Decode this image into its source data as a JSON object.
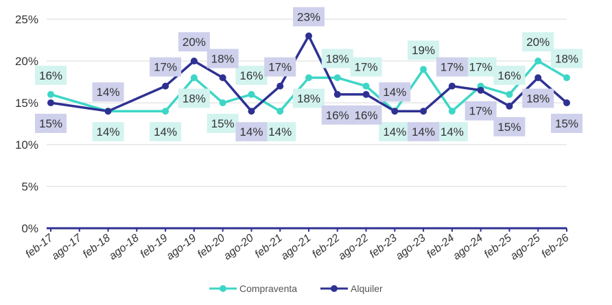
{
  "chart_data": {
    "type": "line",
    "title": "",
    "xlabel": "",
    "ylabel": "",
    "x": [
      "feb-17",
      "ago-17",
      "feb-18",
      "ago-18",
      "feb-19",
      "ago-19",
      "feb-20",
      "ago-20",
      "feb-21",
      "ago-21",
      "feb-22",
      "ago-22",
      "feb-23",
      "ago-23",
      "feb-24",
      "ago-24",
      "feb-25",
      "ago-25",
      "feb-26"
    ],
    "ylim": [
      0,
      25
    ],
    "yticks": [
      "0%",
      "5%",
      "10%",
      "15%",
      "20%",
      "25%"
    ],
    "grid": true,
    "legend_position": "bottom",
    "series": [
      {
        "name": "Compraventa",
        "color": "#3dd6c6",
        "label_bg": "#d3f3ef",
        "values": [
          16,
          null,
          14,
          null,
          14,
          18,
          15,
          16,
          14,
          18,
          18,
          17,
          14,
          19,
          14,
          17,
          16,
          20,
          18
        ],
        "labels": [
          "16%",
          "",
          "14%",
          "",
          "14%",
          "18%",
          "15%",
          "16%",
          "14%",
          "18%",
          "18%",
          "17%",
          "14%",
          "19%",
          "14%",
          "17%",
          "16%",
          "20%",
          "18%"
        ],
        "label_pos": [
          "above",
          "",
          "below",
          "",
          "below",
          "below",
          "below",
          "above",
          "below",
          "below",
          "above",
          "above",
          "below",
          "above",
          "below",
          "above",
          "above",
          "above",
          "above"
        ]
      },
      {
        "name": "Alquiler",
        "color": "#2e3192",
        "label_bg": "#cfd0ec",
        "values": [
          15,
          null,
          14,
          null,
          17,
          20,
          18,
          14,
          17,
          23,
          16,
          16,
          14,
          14,
          17,
          16.5,
          14.6,
          18,
          15
        ],
        "labels": [
          "15%",
          "",
          "14%",
          "",
          "17%",
          "20%",
          "18%",
          "14%",
          "17%",
          "23%",
          "16%",
          "16%",
          "14%",
          "14%",
          "17%",
          "17%",
          "15%",
          "18%",
          "15%"
        ],
        "label_pos": [
          "below",
          "",
          "above",
          "",
          "above",
          "above",
          "above",
          "below",
          "above",
          "above",
          "below",
          "below",
          "above",
          "below",
          "above",
          "below",
          "below",
          "below",
          "below"
        ]
      }
    ]
  }
}
